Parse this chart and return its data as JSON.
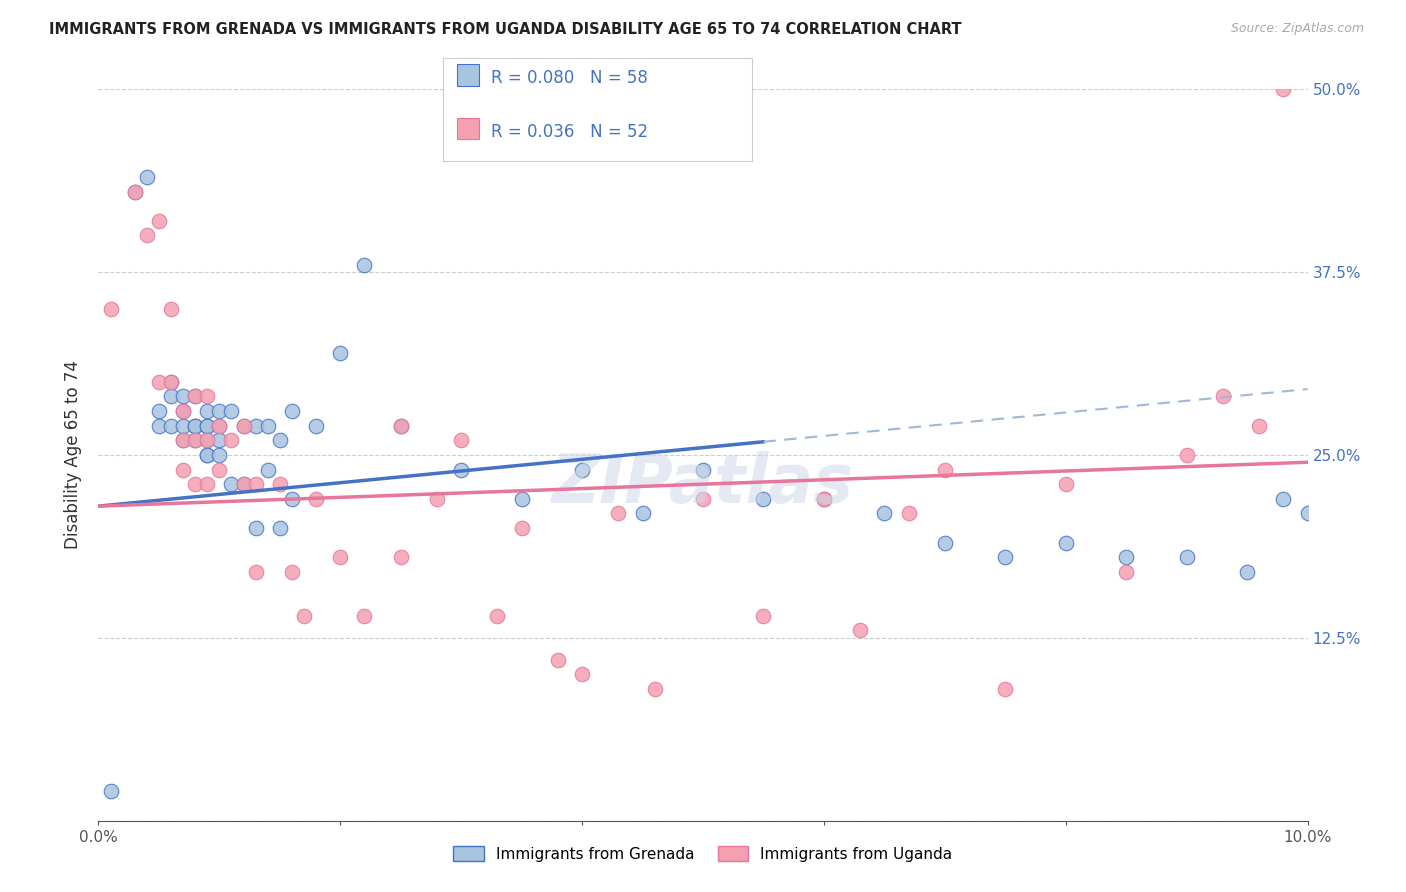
{
  "title": "IMMIGRANTS FROM GRENADA VS IMMIGRANTS FROM UGANDA DISABILITY AGE 65 TO 74 CORRELATION CHART",
  "source": "Source: ZipAtlas.com",
  "ylabel": "Disability Age 65 to 74",
  "xlim": [
    0.0,
    0.1
  ],
  "ylim": [
    0.0,
    0.5
  ],
  "xticks": [
    0.0,
    0.02,
    0.04,
    0.06,
    0.08,
    0.1
  ],
  "yticks": [
    0.0,
    0.125,
    0.25,
    0.375,
    0.5
  ],
  "grenada_color": "#a8c4e0",
  "uganda_color": "#f4a0b0",
  "grenada_R": 0.08,
  "grenada_N": 58,
  "uganda_R": 0.036,
  "uganda_N": 52,
  "blue_color": "#4472c4",
  "pink_color": "#e8769a",
  "watermark": "ZIPatlas",
  "legend_label_grenada": "Immigrants from Grenada",
  "legend_label_uganda": "Immigrants from Uganda",
  "grenada_x": [
    0.001,
    0.003,
    0.004,
    0.005,
    0.005,
    0.006,
    0.006,
    0.006,
    0.007,
    0.007,
    0.007,
    0.007,
    0.008,
    0.008,
    0.008,
    0.008,
    0.009,
    0.009,
    0.009,
    0.009,
    0.009,
    0.009,
    0.01,
    0.01,
    0.01,
    0.01,
    0.011,
    0.011,
    0.012,
    0.012,
    0.013,
    0.013,
    0.014,
    0.014,
    0.015,
    0.015,
    0.016,
    0.016,
    0.018,
    0.02,
    0.022,
    0.025,
    0.03,
    0.035,
    0.04,
    0.045,
    0.05,
    0.055,
    0.06,
    0.065,
    0.07,
    0.075,
    0.08,
    0.085,
    0.09,
    0.095,
    0.098,
    0.1
  ],
  "grenada_y": [
    0.02,
    0.43,
    0.44,
    0.28,
    0.27,
    0.3,
    0.29,
    0.27,
    0.29,
    0.28,
    0.27,
    0.26,
    0.29,
    0.27,
    0.27,
    0.26,
    0.28,
    0.27,
    0.27,
    0.26,
    0.25,
    0.25,
    0.28,
    0.27,
    0.26,
    0.25,
    0.28,
    0.23,
    0.27,
    0.23,
    0.27,
    0.2,
    0.27,
    0.24,
    0.26,
    0.2,
    0.28,
    0.22,
    0.27,
    0.32,
    0.38,
    0.27,
    0.24,
    0.22,
    0.24,
    0.21,
    0.24,
    0.22,
    0.22,
    0.21,
    0.19,
    0.18,
    0.19,
    0.18,
    0.18,
    0.17,
    0.22,
    0.21
  ],
  "uganda_x": [
    0.001,
    0.003,
    0.004,
    0.005,
    0.005,
    0.006,
    0.006,
    0.007,
    0.007,
    0.007,
    0.008,
    0.008,
    0.008,
    0.009,
    0.009,
    0.009,
    0.01,
    0.01,
    0.011,
    0.012,
    0.012,
    0.013,
    0.013,
    0.015,
    0.016,
    0.017,
    0.018,
    0.02,
    0.022,
    0.025,
    0.025,
    0.028,
    0.03,
    0.033,
    0.035,
    0.038,
    0.04,
    0.043,
    0.046,
    0.05,
    0.055,
    0.06,
    0.063,
    0.067,
    0.07,
    0.075,
    0.08,
    0.085,
    0.09,
    0.093,
    0.096,
    0.098
  ],
  "uganda_y": [
    0.35,
    0.43,
    0.4,
    0.41,
    0.3,
    0.35,
    0.3,
    0.28,
    0.26,
    0.24,
    0.29,
    0.26,
    0.23,
    0.29,
    0.26,
    0.23,
    0.27,
    0.24,
    0.26,
    0.27,
    0.23,
    0.23,
    0.17,
    0.23,
    0.17,
    0.14,
    0.22,
    0.18,
    0.14,
    0.27,
    0.18,
    0.22,
    0.26,
    0.14,
    0.2,
    0.11,
    0.1,
    0.21,
    0.09,
    0.22,
    0.14,
    0.22,
    0.13,
    0.21,
    0.24,
    0.09,
    0.23,
    0.17,
    0.25,
    0.29,
    0.27,
    0.5
  ]
}
